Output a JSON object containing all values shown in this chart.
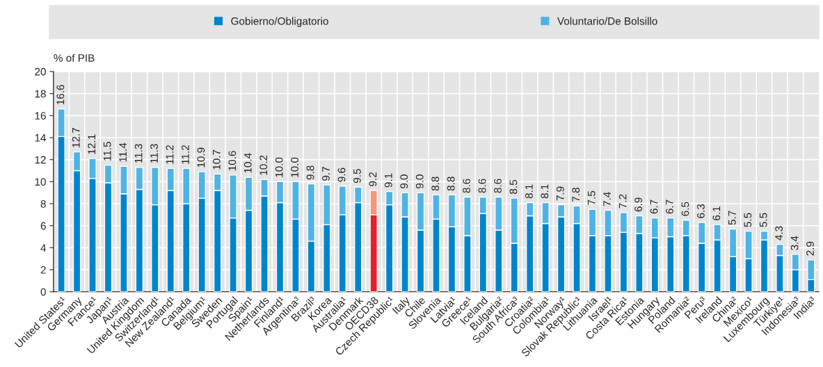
{
  "chart_data": {
    "type": "bar",
    "stacked": true,
    "ylabel": "% of PIB",
    "ylim": [
      0,
      20
    ],
    "yticks": [
      0,
      2,
      4,
      6,
      8,
      10,
      12,
      14,
      16,
      18,
      20
    ],
    "grid": true,
    "legend": "top",
    "categories": [
      "United States¹",
      "Germany",
      "France¹",
      "Japan¹",
      "Austria",
      "United Kingdom",
      "Switzerland¹",
      "New Zealand¹",
      "Canada",
      "Belgium¹",
      "Sweden",
      "Portugal",
      "Spain¹",
      "Netherlands",
      "Finland¹",
      "Argentina³",
      "Brazil³",
      "Korea",
      "Australia¹",
      "Denmark",
      "OECD38",
      "Czech Republic¹",
      "Italy",
      "Chile",
      "Slovenia",
      "Latvia¹",
      "Greece¹",
      "Iceland",
      "Bulgaria²",
      "South Africa³",
      "Croatia²",
      "Colombia¹",
      "Norway¹",
      "Slovak Republic¹",
      "Lithuania",
      "Israel¹",
      "Costa Rica¹",
      "Estonia",
      "Hungary",
      "Poland",
      "Romania²",
      "Peru³",
      "Ireland",
      "China²",
      "Mexico¹",
      "Luxembourg",
      "Türkiye¹",
      "Indonesia³",
      "India³"
    ],
    "series": [
      {
        "name": "Gobierno/Obligatorio",
        "color": "#0085cc",
        "colors": [
          "#0085cc",
          "#0085cc",
          "#0085cc",
          "#0085cc",
          "#0085cc",
          "#0085cc",
          "#0085cc",
          "#0085cc",
          "#0085cc",
          "#0085cc",
          "#0085cc",
          "#0085cc",
          "#0085cc",
          "#0085cc",
          "#0085cc",
          "#0085cc",
          "#0085cc",
          "#0085cc",
          "#0085cc",
          "#0085cc",
          "#e3202a",
          "#0085cc",
          "#0085cc",
          "#0085cc",
          "#0085cc",
          "#0085cc",
          "#0085cc",
          "#0085cc",
          "#0085cc",
          "#0085cc",
          "#0085cc",
          "#0085cc",
          "#0085cc",
          "#0085cc",
          "#0085cc",
          "#0085cc",
          "#0085cc",
          "#0085cc",
          "#0085cc",
          "#0085cc",
          "#0085cc",
          "#0085cc",
          "#0085cc",
          "#0085cc",
          "#0085cc",
          "#0085cc",
          "#0085cc",
          "#0085cc",
          "#0085cc"
        ],
        "values": [
          14.1,
          11.0,
          10.3,
          9.9,
          8.9,
          9.3,
          7.9,
          9.2,
          8.0,
          8.5,
          9.2,
          6.7,
          7.4,
          8.7,
          8.1,
          6.6,
          4.6,
          6.1,
          7.0,
          8.1,
          7.0,
          7.9,
          6.8,
          5.6,
          6.6,
          5.9,
          5.1,
          7.1,
          5.6,
          4.4,
          6.9,
          6.2,
          6.8,
          6.2,
          5.1,
          5.1,
          5.4,
          5.3,
          4.9,
          5.0,
          5.1,
          4.4,
          4.7,
          3.2,
          3.0,
          4.7,
          3.3,
          2.0,
          1.1
        ]
      },
      {
        "name": "Voluntario/De Bolsillo",
        "color": "#4fb3e5",
        "colors": [
          "#4fb3e5",
          "#4fb3e5",
          "#4fb3e5",
          "#4fb3e5",
          "#4fb3e5",
          "#4fb3e5",
          "#4fb3e5",
          "#4fb3e5",
          "#4fb3e5",
          "#4fb3e5",
          "#4fb3e5",
          "#4fb3e5",
          "#4fb3e5",
          "#4fb3e5",
          "#4fb3e5",
          "#4fb3e5",
          "#4fb3e5",
          "#4fb3e5",
          "#4fb3e5",
          "#4fb3e5",
          "#f4977a",
          "#4fb3e5",
          "#4fb3e5",
          "#4fb3e5",
          "#4fb3e5",
          "#4fb3e5",
          "#4fb3e5",
          "#4fb3e5",
          "#4fb3e5",
          "#4fb3e5",
          "#4fb3e5",
          "#4fb3e5",
          "#4fb3e5",
          "#4fb3e5",
          "#4fb3e5",
          "#4fb3e5",
          "#4fb3e5",
          "#4fb3e5",
          "#4fb3e5",
          "#4fb3e5",
          "#4fb3e5",
          "#4fb3e5",
          "#4fb3e5",
          "#4fb3e5",
          "#4fb3e5",
          "#4fb3e5",
          "#4fb3e5",
          "#4fb3e5",
          "#4fb3e5"
        ],
        "values": [
          2.5,
          1.7,
          1.8,
          1.6,
          2.5,
          2.0,
          3.4,
          2.0,
          3.2,
          2.4,
          1.5,
          3.9,
          3.0,
          1.5,
          1.9,
          3.4,
          5.2,
          3.6,
          2.6,
          1.4,
          2.2,
          1.2,
          2.2,
          3.4,
          2.2,
          2.9,
          3.5,
          1.5,
          3.0,
          4.1,
          1.2,
          1.9,
          1.1,
          1.6,
          2.4,
          2.3,
          1.8,
          1.6,
          1.8,
          1.7,
          1.4,
          1.9,
          1.4,
          2.5,
          2.5,
          0.8,
          1.0,
          1.4,
          1.8
        ]
      }
    ],
    "totals": [
      "16.6",
      "12.7",
      "12.1",
      "11.5",
      "11.4",
      "11.3",
      "11.3",
      "11.2",
      "11.2",
      "10.9",
      "10.7",
      "10.6",
      "10.4",
      "10.2",
      "10.0",
      "10.0",
      "9.8",
      "9.7",
      "9.6",
      "9.5",
      "9.2",
      "9.1",
      "9.0",
      "9.0",
      "8.8",
      "8.8",
      "8.6",
      "8.6",
      "8.6",
      "8.5",
      "8.1",
      "8.1",
      "7.9",
      "7.8",
      "7.5",
      "7.4",
      "7.2",
      "6.9",
      "6.7",
      "6.7",
      "6.5",
      "6.3",
      "6.1",
      "5.7",
      "5.5",
      "5.5",
      "4.3",
      "3.4",
      "2.9"
    ]
  }
}
